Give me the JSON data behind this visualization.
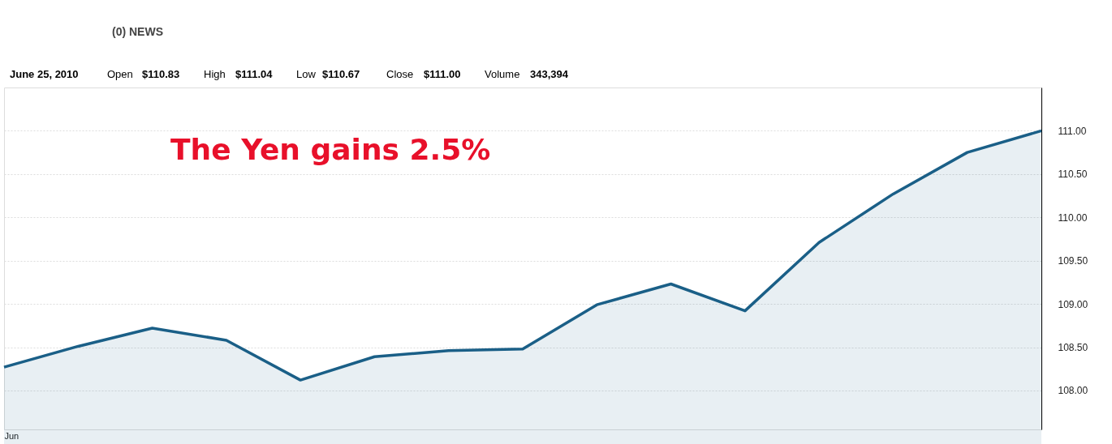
{
  "chart_data": {
    "type": "area",
    "categories": [
      "Jun",
      null,
      null,
      null,
      null,
      null,
      null,
      null,
      null,
      null,
      null,
      null,
      null,
      null,
      null
    ],
    "series": [
      {
        "color": "#1a5f87",
        "values": [
          108.27,
          108.51,
          108.72,
          108.58,
          108.12,
          108.39,
          108.46,
          108.48,
          108.99,
          109.23,
          108.92,
          109.71,
          110.27,
          110.75,
          111.0
        ]
      }
    ],
    "ylim": [
      107.55,
      111.5
    ],
    "yticks": [
      {
        "value": 108,
        "label": "108.00"
      },
      {
        "value": 108.5,
        "label": "108.50"
      },
      {
        "value": 109,
        "label": "109.00"
      },
      {
        "value": 109.5,
        "label": "109.50"
      },
      {
        "value": 110,
        "label": "110.00"
      },
      {
        "value": 110.5,
        "label": "110.50"
      },
      {
        "value": 111,
        "label": "111.00"
      }
    ],
    "grid": "y",
    "marker": "none",
    "line_style": "solid",
    "annotations": [
      "(0) NEWS",
      "June 25, 2010",
      "Open",
      "$110.83",
      "High",
      "$111.04",
      "Low",
      "$110.67",
      "Close",
      "$111.00",
      "Volume",
      "343,394",
      "The Yen gains 2.5%"
    ]
  }
}
